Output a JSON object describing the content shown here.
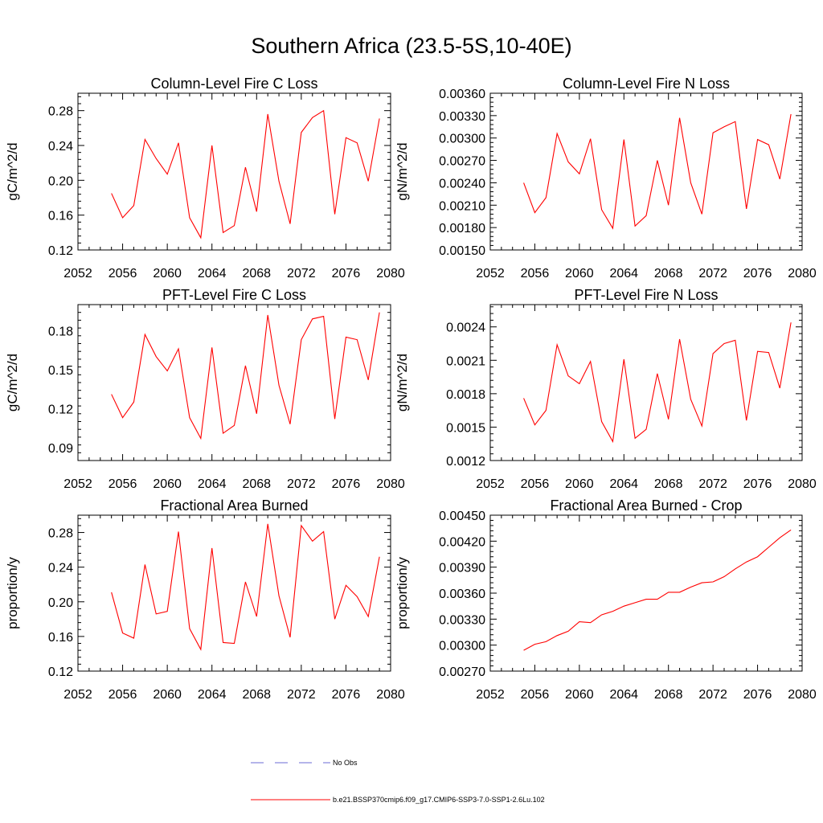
{
  "figure": {
    "title": "Southern Africa (23.5-5S,10-40E)"
  },
  "legend": [
    {
      "label": "No Obs",
      "color": "#6b6bd6",
      "dash": true
    },
    {
      "label": "b.e21.BSSP370cmip6.f09_g17.CMIP6-SSP3-7.0-SSP1-2.6Lu.102",
      "color": "#ff0000",
      "dash": false
    }
  ],
  "chart_data": [
    {
      "type": "line",
      "title": "Column-Level Fire C Loss",
      "ylabel": "gC/m^2/d",
      "xlim": [
        2052,
        2080
      ],
      "xticks": [
        2052,
        2056,
        2060,
        2064,
        2068,
        2072,
        2076,
        2080
      ],
      "ylim": [
        0.12,
        0.3
      ],
      "yticks": [
        "0.12",
        "0.16",
        "0.20",
        "0.24",
        "0.28"
      ],
      "series": [
        {
          "color": "#ff0000",
          "x": [
            2055,
            2056,
            2057,
            2058,
            2059,
            2060,
            2061,
            2062,
            2063,
            2064,
            2065,
            2066,
            2067,
            2068,
            2069,
            2070,
            2071,
            2072,
            2073,
            2074,
            2075,
            2076,
            2077,
            2078,
            2079
          ],
          "values": [
            0.185,
            0.157,
            0.171,
            0.247,
            0.225,
            0.207,
            0.243,
            0.157,
            0.134,
            0.24,
            0.14,
            0.148,
            0.215,
            0.164,
            0.276,
            0.199,
            0.15,
            0.255,
            0.272,
            0.28,
            0.161,
            0.249,
            0.243,
            0.199,
            0.271
          ]
        }
      ]
    },
    {
      "type": "line",
      "title": "Column-Level Fire N Loss",
      "ylabel": "gN/m^2/d",
      "xlim": [
        2052,
        2080
      ],
      "xticks": [
        2052,
        2056,
        2060,
        2064,
        2068,
        2072,
        2076,
        2080
      ],
      "ylim": [
        0.0015,
        0.0036
      ],
      "yticks": [
        "0.00150",
        "0.00180",
        "0.00210",
        "0.00240",
        "0.00270",
        "0.00300",
        "0.00330",
        "0.00360"
      ],
      "series": [
        {
          "color": "#ff0000",
          "x": [
            2055,
            2056,
            2057,
            2058,
            2059,
            2060,
            2061,
            2062,
            2063,
            2064,
            2065,
            2066,
            2067,
            2068,
            2069,
            2070,
            2071,
            2072,
            2073,
            2074,
            2075,
            2076,
            2077,
            2078,
            2079
          ],
          "values": [
            0.0024,
            0.002,
            0.0022,
            0.00306,
            0.00268,
            0.00252,
            0.00299,
            0.00204,
            0.00179,
            0.00298,
            0.00182,
            0.00196,
            0.0027,
            0.0021,
            0.00327,
            0.0024,
            0.00198,
            0.00307,
            0.00315,
            0.00322,
            0.00205,
            0.00298,
            0.00291,
            0.00245,
            0.00332
          ]
        }
      ]
    },
    {
      "type": "line",
      "title": "PFT-Level Fire C Loss",
      "ylabel": "gC/m^2/d",
      "xlim": [
        2052,
        2080
      ],
      "xticks": [
        2052,
        2056,
        2060,
        2064,
        2068,
        2072,
        2076,
        2080
      ],
      "ylim": [
        0.08,
        0.2
      ],
      "yticks": [
        "0.09",
        "0.12",
        "0.15",
        "0.18"
      ],
      "series": [
        {
          "color": "#ff0000",
          "x": [
            2055,
            2056,
            2057,
            2058,
            2059,
            2060,
            2061,
            2062,
            2063,
            2064,
            2065,
            2066,
            2067,
            2068,
            2069,
            2070,
            2071,
            2072,
            2073,
            2074,
            2075,
            2076,
            2077,
            2078,
            2079
          ],
          "values": [
            0.131,
            0.113,
            0.125,
            0.177,
            0.16,
            0.149,
            0.166,
            0.113,
            0.097,
            0.167,
            0.101,
            0.107,
            0.153,
            0.116,
            0.192,
            0.138,
            0.108,
            0.173,
            0.189,
            0.191,
            0.112,
            0.175,
            0.173,
            0.142,
            0.194
          ]
        }
      ]
    },
    {
      "type": "line",
      "title": "PFT-Level Fire N Loss",
      "ylabel": "gN/m^2/d",
      "xlim": [
        2052,
        2080
      ],
      "xticks": [
        2052,
        2056,
        2060,
        2064,
        2068,
        2072,
        2076,
        2080
      ],
      "ylim": [
        0.0012,
        0.0026
      ],
      "yticks": [
        "0.0012",
        "0.0015",
        "0.0018",
        "0.0021",
        "0.0024"
      ],
      "series": [
        {
          "color": "#ff0000",
          "x": [
            2055,
            2056,
            2057,
            2058,
            2059,
            2060,
            2061,
            2062,
            2063,
            2064,
            2065,
            2066,
            2067,
            2068,
            2069,
            2070,
            2071,
            2072,
            2073,
            2074,
            2075,
            2076,
            2077,
            2078,
            2079
          ],
          "values": [
            0.00176,
            0.00152,
            0.00165,
            0.00224,
            0.00196,
            0.00189,
            0.00209,
            0.00155,
            0.00137,
            0.00211,
            0.0014,
            0.00148,
            0.00198,
            0.00157,
            0.00229,
            0.00175,
            0.00151,
            0.00216,
            0.00225,
            0.00228,
            0.00156,
            0.00218,
            0.00217,
            0.00185,
            0.00244
          ]
        }
      ]
    },
    {
      "type": "line",
      "title": "Fractional Area Burned",
      "ylabel": "proportion/y",
      "xlim": [
        2052,
        2080
      ],
      "xticks": [
        2052,
        2056,
        2060,
        2064,
        2068,
        2072,
        2076,
        2080
      ],
      "ylim": [
        0.12,
        0.3
      ],
      "yticks": [
        "0.12",
        "0.16",
        "0.20",
        "0.24",
        "0.28"
      ],
      "series": [
        {
          "color": "#ff0000",
          "x": [
            2055,
            2056,
            2057,
            2058,
            2059,
            2060,
            2061,
            2062,
            2063,
            2064,
            2065,
            2066,
            2067,
            2068,
            2069,
            2070,
            2071,
            2072,
            2073,
            2074,
            2075,
            2076,
            2077,
            2078,
            2079
          ],
          "values": [
            0.211,
            0.164,
            0.158,
            0.243,
            0.186,
            0.189,
            0.281,
            0.169,
            0.145,
            0.262,
            0.153,
            0.152,
            0.223,
            0.183,
            0.29,
            0.207,
            0.159,
            0.288,
            0.27,
            0.281,
            0.18,
            0.219,
            0.206,
            0.183,
            0.252
          ]
        }
      ]
    },
    {
      "type": "line",
      "title": "Fractional Area Burned - Crop",
      "ylabel": "proportion/y",
      "xlim": [
        2052,
        2080
      ],
      "xticks": [
        2052,
        2056,
        2060,
        2064,
        2068,
        2072,
        2076,
        2080
      ],
      "ylim": [
        0.0027,
        0.0045
      ],
      "yticks": [
        "0.00270",
        "0.00300",
        "0.00330",
        "0.00360",
        "0.00390",
        "0.00420",
        "0.00450"
      ],
      "series": [
        {
          "color": "#ff0000",
          "x": [
            2055,
            2056,
            2057,
            2058,
            2059,
            2060,
            2061,
            2062,
            2063,
            2064,
            2065,
            2066,
            2067,
            2068,
            2069,
            2070,
            2071,
            2072,
            2073,
            2074,
            2075,
            2076,
            2077,
            2078,
            2079
          ],
          "values": [
            0.00294,
            0.00301,
            0.00304,
            0.00311,
            0.00316,
            0.00327,
            0.00326,
            0.00335,
            0.00339,
            0.00345,
            0.00349,
            0.00353,
            0.00353,
            0.00361,
            0.00361,
            0.00367,
            0.00372,
            0.00373,
            0.00379,
            0.00388,
            0.00396,
            0.00402,
            0.00413,
            0.00424,
            0.00433
          ]
        }
      ]
    }
  ]
}
